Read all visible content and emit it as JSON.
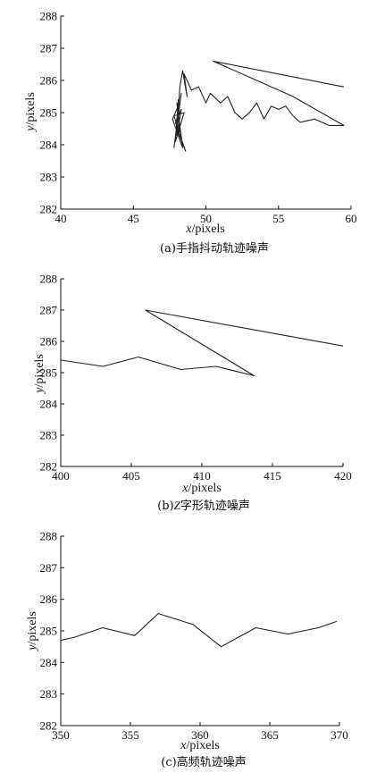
{
  "chart_data": [
    {
      "type": "line",
      "caption": "(a)手指抖动轨迹噪声",
      "xlabel_var": "x",
      "xlabel_unit": "/pixels",
      "ylabel_var": "y",
      "ylabel_unit": "/pixels",
      "xlim": [
        40,
        60
      ],
      "ylim": [
        282,
        288
      ],
      "xticks": [
        "40",
        "45",
        "50",
        "55",
        "60"
      ],
      "yticks": [
        "282",
        "283",
        "284",
        "285",
        "286",
        "287",
        "288"
      ],
      "grid": false,
      "series": [
        {
          "x": [
            47.8,
            48.3,
            47.9,
            48.1,
            47.7,
            48.4,
            48.0,
            48.2,
            47.8,
            48.5,
            47.9,
            48.1,
            48.0,
            48.6,
            47.9,
            48.3,
            48.0,
            48.2,
            48.4,
            48.7,
            48.5,
            49.0,
            49.5,
            50.0,
            50.3,
            51.0,
            51.5,
            52.0,
            52.5,
            53.0,
            53.5,
            54.0,
            54.5,
            55.0,
            55.5,
            56.0,
            56.5,
            57.5,
            58.5,
            59.5,
            56.0,
            53.0,
            50.5,
            59.5
          ],
          "y": [
            283.9,
            285.6,
            284.2,
            285.2,
            284.8,
            283.9,
            285.3,
            284.4,
            284.9,
            285.0,
            284.1,
            285.4,
            284.5,
            283.8,
            284.7,
            285.1,
            284.3,
            285.8,
            286.3,
            285.5,
            286.2,
            285.7,
            285.8,
            285.3,
            285.6,
            285.3,
            285.5,
            285.0,
            284.8,
            285.0,
            285.3,
            284.8,
            285.2,
            285.1,
            285.2,
            284.9,
            284.7,
            284.8,
            284.6,
            284.6,
            285.5,
            286.1,
            286.6,
            285.8
          ]
        }
      ]
    },
    {
      "type": "line",
      "caption_pre": "(b)",
      "caption_z": "Z",
      "caption_post": "字形轨迹噪声",
      "xlabel_var": "x",
      "xlabel_unit": "/pixels",
      "ylabel_var": "y",
      "ylabel_unit": "/pixels",
      "xlim": [
        400,
        420
      ],
      "ylim": [
        282,
        288
      ],
      "xticks": [
        "400",
        "405",
        "410",
        "415",
        "420"
      ],
      "yticks": [
        "282",
        "283",
        "284",
        "285",
        "286",
        "287",
        "288"
      ],
      "grid": false,
      "series": [
        {
          "x": [
            400,
            403,
            405.5,
            408.5,
            411,
            413.7,
            406,
            420
          ],
          "y": [
            285.4,
            285.2,
            285.5,
            285.1,
            285.2,
            284.9,
            287.0,
            285.85
          ]
        }
      ]
    },
    {
      "type": "line",
      "caption": "(c)高频轨迹噪声",
      "xlabel_var": "x",
      "xlabel_unit": "/pixels",
      "ylabel_var": "y",
      "ylabel_unit": "/pixels",
      "xlim": [
        350,
        370
      ],
      "ylim": [
        282,
        288
      ],
      "xticks": [
        "350",
        "355",
        "360",
        "365",
        "370"
      ],
      "yticks": [
        "282",
        "283",
        "284",
        "285",
        "286",
        "287",
        "288"
      ],
      "grid": false,
      "series": [
        {
          "x": [
            350,
            351,
            353,
            355.3,
            357,
            359.5,
            361.5,
            364,
            366.3,
            368.5,
            369.8
          ],
          "y": [
            284.7,
            284.8,
            285.1,
            284.85,
            285.55,
            285.2,
            284.5,
            285.1,
            284.9,
            285.1,
            285.3
          ]
        }
      ]
    }
  ]
}
